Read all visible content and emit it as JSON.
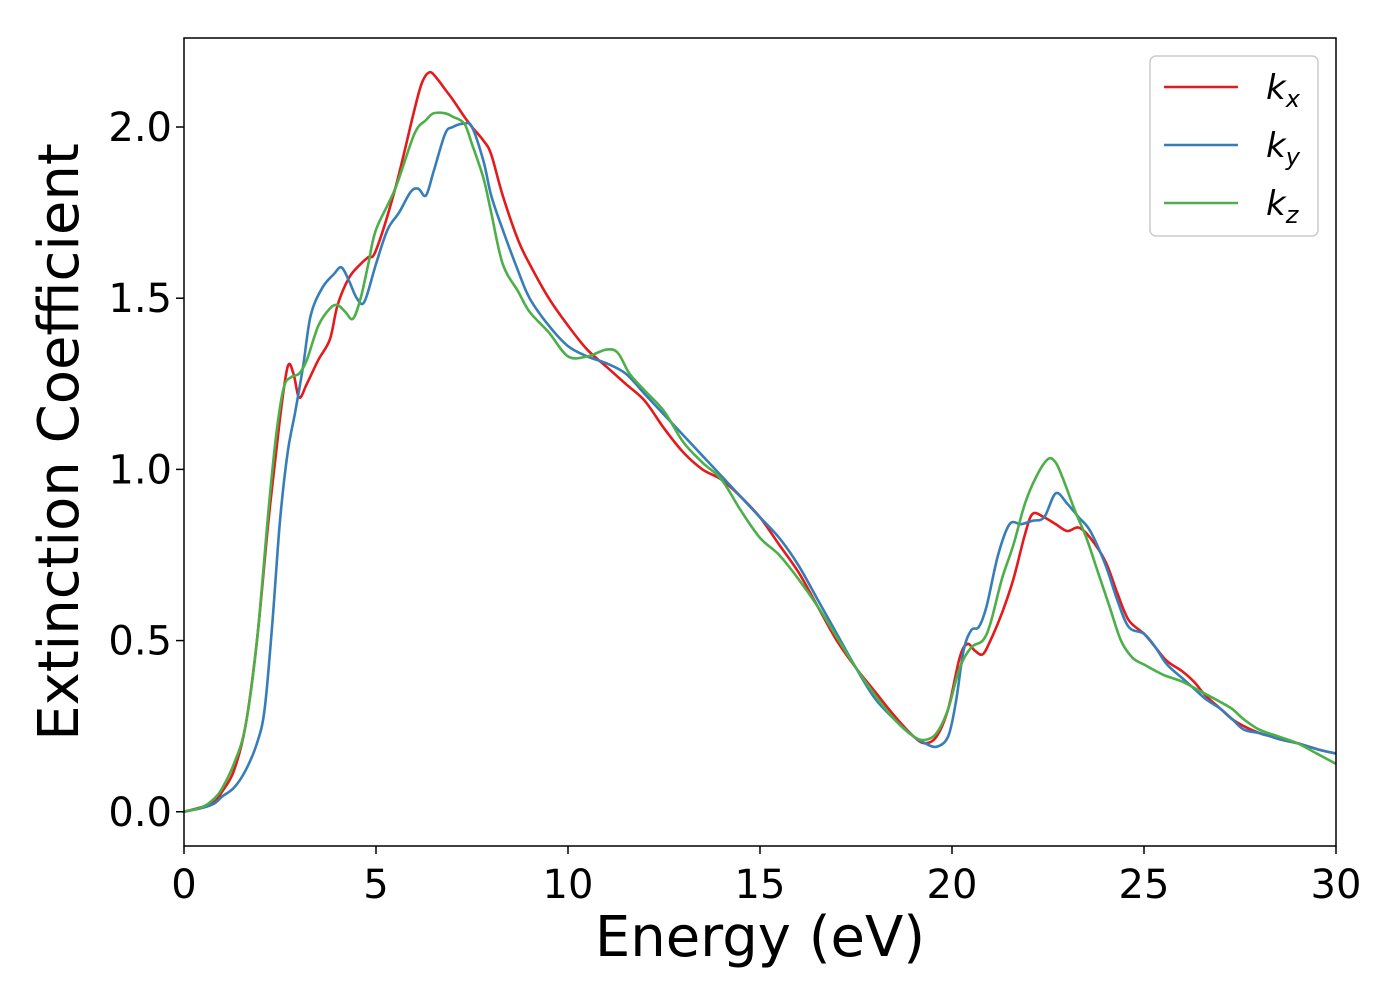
{
  "chart_data": {
    "type": "line",
    "xlabel": "Energy (eV)",
    "ylabel": "Extinction Coefficient",
    "xlim": [
      0,
      30
    ],
    "ylim": [
      -0.1,
      2.26
    ],
    "xticks": [
      0,
      5,
      10,
      15,
      20,
      25,
      30
    ],
    "yticks": [
      0.0,
      0.5,
      1.0,
      1.5,
      2.0
    ],
    "xtick_labels": [
      "0",
      "5",
      "10",
      "15",
      "20",
      "25",
      "30"
    ],
    "ytick_labels": [
      "0.0",
      "0.5",
      "1.0",
      "1.5",
      "2.0"
    ],
    "grid": false,
    "legend_position": "top-right",
    "series": [
      {
        "name": "k",
        "subscript": "x",
        "color": "#e41a1c",
        "x": [
          0,
          0.5,
          0.8,
          1.0,
          1.3,
          1.6,
          1.9,
          2.2,
          2.5,
          2.7,
          2.85,
          3.0,
          3.2,
          3.5,
          3.8,
          4.0,
          4.3,
          4.6,
          4.8,
          5.0,
          5.5,
          6.0,
          6.2,
          6.4,
          6.6,
          6.8,
          7.0,
          7.3,
          7.5,
          7.8,
          8.0,
          8.3,
          8.7,
          9.0,
          9.5,
          10.0,
          10.5,
          11.0,
          11.5,
          12.0,
          12.5,
          13.0,
          13.5,
          14.0,
          14.5,
          15.0,
          15.5,
          16.0,
          16.5,
          17.0,
          17.5,
          18.0,
          18.5,
          19.0,
          19.3,
          19.6,
          19.9,
          20.2,
          20.4,
          20.6,
          20.8,
          21.0,
          21.3,
          21.6,
          21.9,
          22.1,
          22.4,
          22.7,
          23.0,
          23.3,
          23.6,
          24.0,
          24.3,
          24.6,
          25.0,
          25.3,
          25.6,
          26.0,
          26.3,
          26.6,
          27.0,
          27.3,
          27.6,
          28.0,
          28.3,
          28.6,
          29.0,
          29.3,
          29.6,
          30.0
        ],
        "y": [
          0,
          0.015,
          0.03,
          0.06,
          0.12,
          0.25,
          0.5,
          0.85,
          1.15,
          1.3,
          1.28,
          1.21,
          1.25,
          1.32,
          1.38,
          1.48,
          1.56,
          1.6,
          1.62,
          1.64,
          1.82,
          2.05,
          2.13,
          2.16,
          2.14,
          2.11,
          2.08,
          2.03,
          2.0,
          1.96,
          1.92,
          1.8,
          1.67,
          1.6,
          1.5,
          1.42,
          1.35,
          1.3,
          1.25,
          1.2,
          1.12,
          1.05,
          1.0,
          0.97,
          0.92,
          0.86,
          0.78,
          0.7,
          0.6,
          0.5,
          0.42,
          0.35,
          0.28,
          0.22,
          0.2,
          0.22,
          0.3,
          0.45,
          0.49,
          0.47,
          0.46,
          0.5,
          0.58,
          0.68,
          0.81,
          0.87,
          0.86,
          0.84,
          0.82,
          0.83,
          0.8,
          0.73,
          0.64,
          0.56,
          0.52,
          0.48,
          0.44,
          0.41,
          0.38,
          0.34,
          0.3,
          0.27,
          0.25,
          0.23,
          0.22,
          0.21,
          0.2,
          0.19,
          0.18,
          0.17
        ]
      },
      {
        "name": "k",
        "subscript": "y",
        "color": "#377eb8",
        "x": [
          0,
          0.5,
          0.8,
          1.0,
          1.3,
          1.6,
          1.9,
          2.1,
          2.3,
          2.5,
          2.7,
          2.9,
          3.1,
          3.3,
          3.6,
          3.9,
          4.1,
          4.3,
          4.5,
          4.7,
          5.0,
          5.3,
          5.6,
          5.9,
          6.1,
          6.3,
          6.5,
          6.8,
          7.0,
          7.3,
          7.5,
          7.8,
          8.0,
          8.3,
          8.7,
          9.0,
          9.5,
          10.0,
          10.5,
          11.0,
          11.5,
          12.0,
          12.5,
          13.0,
          13.5,
          14.0,
          14.5,
          15.0,
          15.5,
          16.0,
          16.5,
          17.0,
          17.5,
          18.0,
          18.5,
          19.0,
          19.3,
          19.6,
          19.9,
          20.1,
          20.3,
          20.5,
          20.7,
          20.9,
          21.2,
          21.5,
          21.8,
          22.1,
          22.4,
          22.7,
          23.0,
          23.3,
          23.6,
          24.0,
          24.3,
          24.6,
          25.0,
          25.3,
          25.6,
          26.0,
          26.3,
          26.6,
          27.0,
          27.3,
          27.6,
          28.0,
          28.3,
          28.6,
          29.0,
          29.3,
          29.6,
          30.0
        ],
        "y": [
          0,
          0.012,
          0.025,
          0.045,
          0.07,
          0.12,
          0.2,
          0.3,
          0.55,
          0.85,
          1.05,
          1.17,
          1.3,
          1.45,
          1.53,
          1.57,
          1.59,
          1.55,
          1.5,
          1.49,
          1.6,
          1.7,
          1.75,
          1.81,
          1.82,
          1.8,
          1.87,
          1.98,
          2.0,
          2.01,
          2.0,
          1.9,
          1.8,
          1.7,
          1.58,
          1.5,
          1.42,
          1.36,
          1.33,
          1.31,
          1.28,
          1.22,
          1.16,
          1.1,
          1.04,
          0.98,
          0.92,
          0.86,
          0.8,
          0.72,
          0.62,
          0.52,
          0.42,
          0.33,
          0.27,
          0.22,
          0.2,
          0.19,
          0.22,
          0.32,
          0.47,
          0.53,
          0.54,
          0.6,
          0.75,
          0.84,
          0.84,
          0.85,
          0.86,
          0.93,
          0.9,
          0.86,
          0.82,
          0.72,
          0.62,
          0.54,
          0.52,
          0.48,
          0.43,
          0.39,
          0.36,
          0.33,
          0.3,
          0.27,
          0.24,
          0.23,
          0.22,
          0.21,
          0.2,
          0.19,
          0.18,
          0.17
        ]
      },
      {
        "name": "k",
        "subscript": "z",
        "color": "#4daf4a",
        "x": [
          0,
          0.5,
          0.8,
          1.0,
          1.3,
          1.6,
          1.9,
          2.2,
          2.4,
          2.6,
          2.8,
          3.0,
          3.2,
          3.5,
          3.8,
          4.0,
          4.2,
          4.4,
          4.6,
          4.8,
          5.0,
          5.5,
          6.0,
          6.3,
          6.5,
          6.8,
          7.0,
          7.3,
          7.5,
          7.8,
          8.0,
          8.3,
          8.7,
          9.0,
          9.5,
          10.0,
          10.5,
          11.0,
          11.3,
          11.6,
          12.0,
          12.5,
          13.0,
          13.5,
          14.0,
          14.5,
          15.0,
          15.5,
          16.0,
          16.5,
          17.0,
          17.5,
          18.0,
          18.5,
          19.0,
          19.3,
          19.6,
          19.9,
          20.2,
          20.5,
          20.8,
          21.0,
          21.3,
          21.6,
          21.9,
          22.2,
          22.5,
          22.7,
          22.9,
          23.2,
          23.5,
          23.8,
          24.1,
          24.4,
          24.7,
          25.0,
          25.5,
          26.0,
          26.5,
          27.0,
          27.3,
          27.6,
          28.0,
          28.5,
          29.0,
          29.5,
          30.0
        ],
        "y": [
          0,
          0.015,
          0.04,
          0.07,
          0.14,
          0.25,
          0.5,
          0.88,
          1.1,
          1.24,
          1.27,
          1.28,
          1.32,
          1.42,
          1.47,
          1.48,
          1.46,
          1.44,
          1.5,
          1.6,
          1.7,
          1.82,
          1.98,
          2.02,
          2.04,
          2.04,
          2.03,
          2.01,
          1.95,
          1.85,
          1.75,
          1.6,
          1.52,
          1.46,
          1.4,
          1.33,
          1.33,
          1.35,
          1.34,
          1.28,
          1.23,
          1.17,
          1.08,
          1.02,
          0.97,
          0.88,
          0.8,
          0.75,
          0.68,
          0.6,
          0.51,
          0.42,
          0.34,
          0.27,
          0.22,
          0.21,
          0.23,
          0.3,
          0.42,
          0.48,
          0.5,
          0.55,
          0.68,
          0.78,
          0.9,
          0.98,
          1.03,
          1.02,
          0.97,
          0.88,
          0.8,
          0.7,
          0.6,
          0.5,
          0.45,
          0.43,
          0.4,
          0.38,
          0.35,
          0.32,
          0.3,
          0.27,
          0.24,
          0.22,
          0.2,
          0.17,
          0.14
        ]
      }
    ]
  }
}
